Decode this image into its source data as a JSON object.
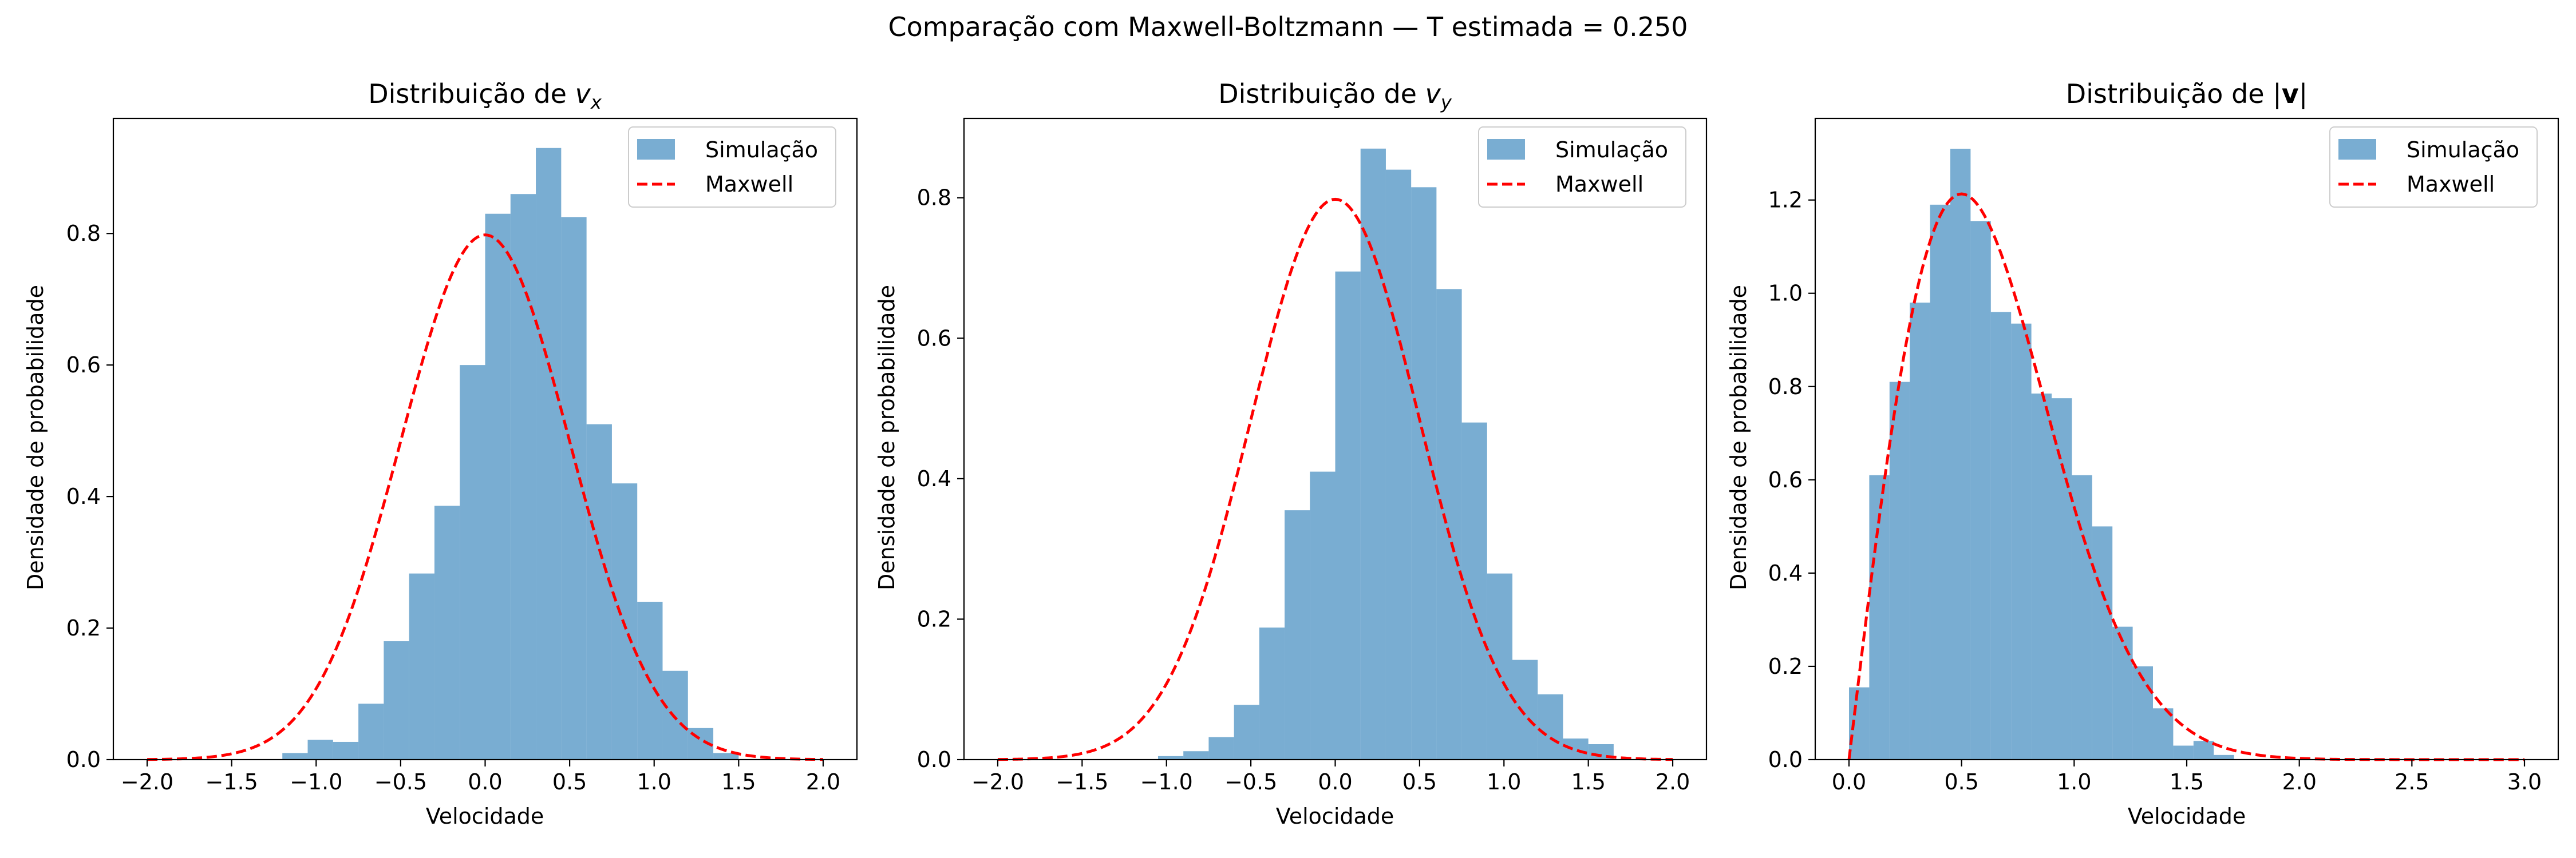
{
  "figure": {
    "suptitle": "Comparação com Maxwell-Boltzmann — T estimada = 0.250"
  },
  "chart_data": [
    {
      "type": "bar",
      "title": "Distribuição de v_x",
      "title_text": "Distribuição de ",
      "title_symbol": "v",
      "title_subscript": "x",
      "xlabel": "Velocidade",
      "ylabel": "Densidade de probabilidade",
      "xlim": [
        -2.2,
        2.2
      ],
      "ylim": [
        0,
        0.975
      ],
      "xticks": [
        -2.0,
        -1.5,
        -1.0,
        -0.5,
        0.0,
        0.5,
        1.0,
        1.5,
        2.0
      ],
      "xtick_labels": [
        "−2.0",
        "−1.5",
        "−1.0",
        "−0.5",
        "0.0",
        "0.5",
        "1.0",
        "1.5",
        "2.0"
      ],
      "yticks": [
        0,
        0.2,
        0.4,
        0.6,
        0.8
      ],
      "ytick_labels": [
        "0.0",
        "0.2",
        "0.4",
        "0.6",
        "0.8"
      ],
      "legend": {
        "position": "upper right",
        "entries": [
          "Simulação",
          "Maxwell"
        ]
      },
      "series": [
        {
          "name": "Simulação",
          "kind": "histogram",
          "color": "#1f77b4",
          "alpha": 0.6,
          "bin_edges": [
            -1.2,
            -1.05,
            -0.9,
            -0.75,
            -0.6,
            -0.45,
            -0.3,
            -0.15,
            0.0,
            0.15,
            0.3,
            0.45,
            0.6,
            0.75,
            0.9,
            1.05,
            1.2,
            1.35,
            1.5
          ],
          "values": [
            0.01,
            0.03,
            0.027,
            0.085,
            0.18,
            0.283,
            0.386,
            0.6,
            0.83,
            0.86,
            0.93,
            0.825,
            0.51,
            0.42,
            0.24,
            0.135,
            0.048,
            0.01
          ]
        },
        {
          "name": "Maxwell",
          "kind": "gaussian",
          "color": "#ff0000",
          "dashed": true,
          "T": 0.25,
          "x_range": [
            -2.0,
            2.0
          ]
        }
      ]
    },
    {
      "type": "bar",
      "title": "Distribuição de v_y",
      "title_text": "Distribuição de ",
      "title_symbol": "v",
      "title_subscript": "y",
      "xlabel": "Velocidade",
      "ylabel": "Densidade de probabilidade",
      "xlim": [
        -2.2,
        2.2
      ],
      "ylim": [
        0,
        0.913
      ],
      "xticks": [
        -2.0,
        -1.5,
        -1.0,
        -0.5,
        0.0,
        0.5,
        1.0,
        1.5,
        2.0
      ],
      "xtick_labels": [
        "−2.0",
        "−1.5",
        "−1.0",
        "−0.5",
        "0.0",
        "0.5",
        "1.0",
        "1.5",
        "2.0"
      ],
      "yticks": [
        0,
        0.2,
        0.4,
        0.6,
        0.8
      ],
      "ytick_labels": [
        "0.0",
        "0.2",
        "0.4",
        "0.6",
        "0.8"
      ],
      "legend": {
        "position": "upper right",
        "entries": [
          "Simulação",
          "Maxwell"
        ]
      },
      "series": [
        {
          "name": "Simulação",
          "kind": "histogram",
          "color": "#1f77b4",
          "alpha": 0.6,
          "bin_edges": [
            -1.05,
            -0.9,
            -0.75,
            -0.6,
            -0.45,
            -0.3,
            -0.15,
            0.0,
            0.15,
            0.3,
            0.45,
            0.6,
            0.75,
            0.9,
            1.05,
            1.2,
            1.35,
            1.5,
            1.65
          ],
          "values": [
            0.005,
            0.012,
            0.032,
            0.078,
            0.188,
            0.355,
            0.41,
            0.695,
            0.87,
            0.84,
            0.815,
            0.67,
            0.48,
            0.265,
            0.142,
            0.093,
            0.03,
            0.022
          ]
        },
        {
          "name": "Maxwell",
          "kind": "gaussian",
          "color": "#ff0000",
          "dashed": true,
          "T": 0.25,
          "x_range": [
            -2.0,
            2.0
          ]
        }
      ]
    },
    {
      "type": "bar",
      "title": "Distribuição de |v|",
      "title_text": "Distribuição de ",
      "title_bar_open": "|",
      "title_symbol": "v",
      "title_bar_close": "|",
      "xlabel": "Velocidade",
      "ylabel": "Densidade de probabilidade",
      "xlim": [
        -0.15,
        3.15
      ],
      "ylim": [
        0,
        1.375
      ],
      "xticks": [
        0.0,
        0.5,
        1.0,
        1.5,
        2.0,
        2.5,
        3.0
      ],
      "xtick_labels": [
        "0.0",
        "0.5",
        "1.0",
        "1.5",
        "2.0",
        "2.5",
        "3.0"
      ],
      "yticks": [
        0,
        0.2,
        0.4,
        0.6,
        0.8,
        1.0,
        1.2
      ],
      "ytick_labels": [
        "0.0",
        "0.2",
        "0.4",
        "0.6",
        "0.8",
        "1.0",
        "1.2"
      ],
      "legend": {
        "position": "upper right",
        "entries": [
          "Simulação",
          "Maxwell"
        ]
      },
      "series": [
        {
          "name": "Simulação",
          "kind": "histogram",
          "color": "#1f77b4",
          "alpha": 0.6,
          "bin_edges": [
            0.0,
            0.09,
            0.18,
            0.27,
            0.36,
            0.45,
            0.54,
            0.63,
            0.72,
            0.81,
            0.9,
            0.99,
            1.08,
            1.17,
            1.26,
            1.35,
            1.44,
            1.53,
            1.62,
            1.71
          ],
          "values": [
            0.155,
            0.61,
            0.81,
            0.98,
            1.19,
            1.31,
            1.155,
            0.96,
            0.935,
            0.785,
            0.775,
            0.61,
            0.5,
            0.285,
            0.2,
            0.11,
            0.03,
            0.04,
            0.01
          ]
        },
        {
          "name": "Maxwell",
          "kind": "speed2d",
          "color": "#ff0000",
          "dashed": true,
          "T": 0.25,
          "x_range": [
            0.0,
            3.0
          ]
        }
      ]
    }
  ]
}
